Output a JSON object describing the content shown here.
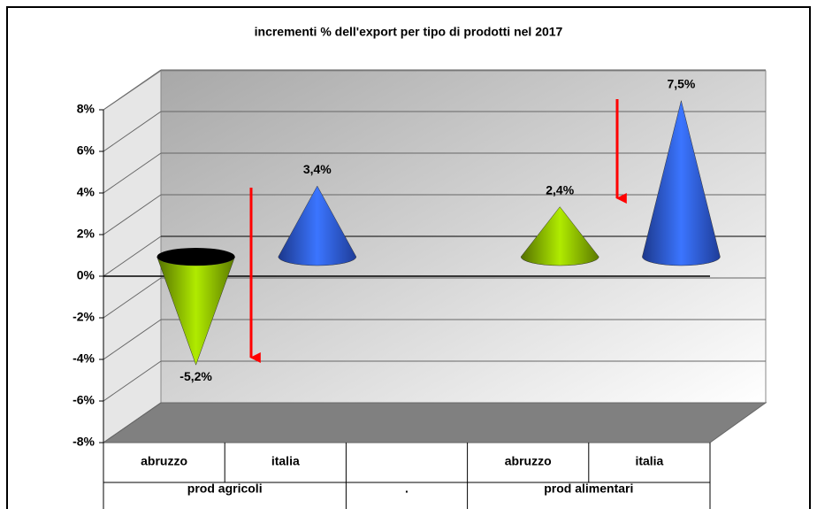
{
  "chart_data": {
    "type": "cone",
    "title": "incrementi % dell'export per tipo di prodotti nel 2017",
    "categories": [
      "abruzzo",
      "italia",
      null,
      "abruzzo",
      "italia"
    ],
    "groups": [
      "prod agricoli",
      ".",
      "prod alimentari"
    ],
    "values": [
      -5.2,
      3.4,
      null,
      2.4,
      7.5
    ],
    "value_labels": [
      "-5,2%",
      "3,4%",
      null,
      "2,4%",
      "7,5%"
    ],
    "colors": [
      "#99cc00",
      "#3366ff",
      null,
      "#99cc00",
      "#3366ff"
    ],
    "ylim": [
      -8,
      8
    ],
    "yticks": [
      {
        "value": -8,
        "label": "-8%"
      },
      {
        "value": -6,
        "label": "-6%"
      },
      {
        "value": -4,
        "label": "-4%"
      },
      {
        "value": -2,
        "label": "-2%"
      },
      {
        "value": 0,
        "label": "0%"
      },
      {
        "value": 2,
        "label": "2%"
      },
      {
        "value": 4,
        "label": "4%"
      },
      {
        "value": 6,
        "label": "6%"
      },
      {
        "value": 8,
        "label": "8%"
      }
    ],
    "grid": true
  }
}
